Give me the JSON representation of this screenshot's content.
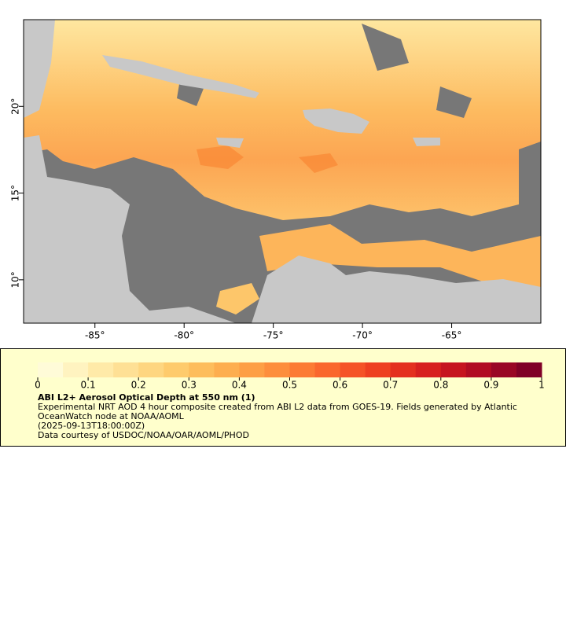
{
  "chart_data": {
    "type": "map",
    "xlim": [
      -89,
      -60
    ],
    "ylim": [
      7.5,
      25
    ],
    "xticks": [
      {
        "value": -85,
        "label": "-85°"
      },
      {
        "value": -80,
        "label": "-80°"
      },
      {
        "value": -75,
        "label": "-75°"
      },
      {
        "value": -70,
        "label": "-70°"
      },
      {
        "value": -65,
        "label": "-65°"
      }
    ],
    "yticks": [
      {
        "value": 10,
        "label": "10°"
      },
      {
        "value": 15,
        "label": "15°"
      },
      {
        "value": 20,
        "label": "20°"
      }
    ],
    "colorbar": {
      "range": [
        0,
        1
      ],
      "ticks": [
        0,
        0.1,
        0.2,
        0.3,
        0.4,
        0.5,
        0.6,
        0.7,
        0.8,
        0.9,
        1
      ],
      "colors": [
        "#fffbd8",
        "#fff3c0",
        "#ffeaa8",
        "#fee095",
        "#fed680",
        "#fecb6c",
        "#fdbd5c",
        "#fdae4f",
        "#fd9f45",
        "#fd8e3c",
        "#fc7b34",
        "#fa672d",
        "#f55327",
        "#ee4021",
        "#e4301f",
        "#d7201f",
        "#c6141f",
        "#b10c22",
        "#990625",
        "#800026"
      ]
    },
    "legend_title": "ABI L2+ Aerosol Optical Depth at 550 nm (1)",
    "description": "Experimental NRT AOD 4 hour composite created from ABI L2 data from GOES-19. Fields generated by Atlantic OceanWatch node at NOAA/AOML",
    "time": "(2025-09-13T18:00:00Z)",
    "credit": "Data courtesy of USDOC/NOAA/OAR/AOML/PHOD"
  }
}
